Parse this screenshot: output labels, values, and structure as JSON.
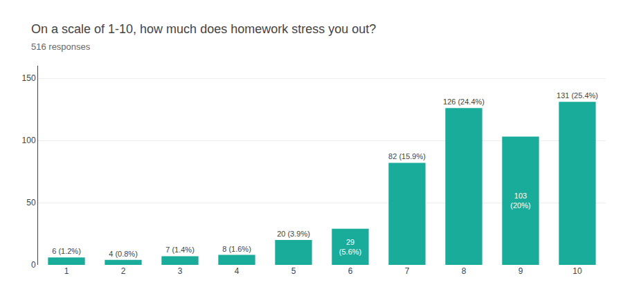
{
  "chart_data": {
    "type": "bar",
    "title": "On a scale of 1-10, how much does homework stress you out?",
    "subtitle": "516 responses",
    "categories": [
      1,
      2,
      3,
      4,
      5,
      6,
      7,
      8,
      9,
      10
    ],
    "values": [
      6,
      4,
      7,
      8,
      20,
      29,
      82,
      126,
      103,
      131
    ],
    "value_labels": [
      "6 (1.2%)",
      "4 (0.8%)",
      "7 (1.4%)",
      "8 (1.6%)",
      "20 (3.9%)",
      "29\n(5.6%)",
      "82 (15.9%)",
      "126 (24.4%)",
      "103\n(20%)",
      "131 (25.4%)"
    ],
    "data_labels": true,
    "color": "#1aac9b",
    "ylim": [
      0,
      160
    ],
    "yticks": [
      0,
      50,
      100,
      150
    ],
    "grid": true
  }
}
